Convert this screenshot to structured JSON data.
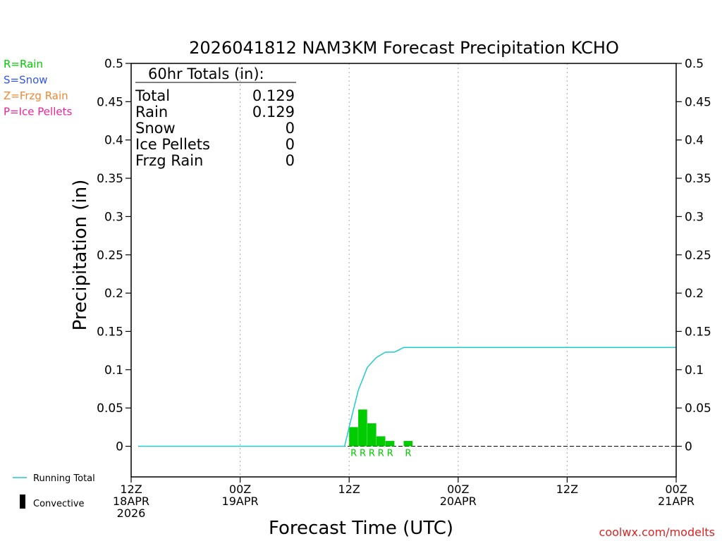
{
  "chart_data": {
    "type": "bar",
    "title": "2026041812 NAM3KM Forecast Precipitation KCHO",
    "xlabel": "Forecast Time (UTC)",
    "ylabel": "Precipitation (in)",
    "ylim": [
      -0.04,
      0.5
    ],
    "yticks": [
      0,
      0.05,
      0.1,
      0.15,
      0.2,
      0.25,
      0.3,
      0.35,
      0.4,
      0.45,
      0.5
    ],
    "ytick_labels": [
      "0",
      "0.05",
      "0.1",
      "0.15",
      "0.2",
      "0.25",
      "0.3",
      "0.35",
      "0.4",
      "0.45",
      "0.5"
    ],
    "xlim_hours": [
      0,
      60
    ],
    "xticks": [
      {
        "hour": 0,
        "lines": [
          "12Z",
          "18APR",
          "2026"
        ]
      },
      {
        "hour": 12,
        "lines": [
          "00Z",
          "19APR"
        ]
      },
      {
        "hour": 24,
        "lines": [
          "12Z"
        ]
      },
      {
        "hour": 36,
        "lines": [
          "00Z",
          "20APR"
        ]
      },
      {
        "hour": 48,
        "lines": [
          "12Z"
        ]
      },
      {
        "hour": 60,
        "lines": [
          "00Z",
          "21APR"
        ]
      }
    ],
    "bars": [
      {
        "hour": 24,
        "value": 0.025,
        "ptype": "R"
      },
      {
        "hour": 25,
        "value": 0.048,
        "ptype": "R"
      },
      {
        "hour": 26,
        "value": 0.03,
        "ptype": "R"
      },
      {
        "hour": 27,
        "value": 0.013,
        "ptype": "R"
      },
      {
        "hour": 28,
        "value": 0.007,
        "ptype": "R"
      },
      {
        "hour": 30,
        "value": 0.007,
        "ptype": "R"
      }
    ],
    "running_total": {
      "hours": [
        0.8,
        23,
        23.5,
        24,
        25,
        26,
        27,
        28,
        29,
        30,
        60
      ],
      "values": [
        0,
        0,
        0,
        0.025,
        0.073,
        0.103,
        0.116,
        0.123,
        0.123,
        0.129,
        0.129
      ]
    },
    "totals_box": {
      "title": "60hr Totals (in):",
      "rows": [
        {
          "label": "Total",
          "value": "0.129"
        },
        {
          "label": "Rain",
          "value": "0.129"
        },
        {
          "label": "Snow",
          "value": "0"
        },
        {
          "label": "Ice Pellets",
          "value": "0"
        },
        {
          "label": "Frzg Rain",
          "value": "0"
        }
      ]
    },
    "ptype_legend": [
      {
        "text": "R=Rain",
        "color": "#00cc00"
      },
      {
        "text": "S=Snow",
        "color": "#3355ee"
      },
      {
        "text": "Z=Frzg Rain",
        "color": "#ee8833"
      },
      {
        "text": "P=Ice Pellets",
        "color": "#ee2299"
      }
    ],
    "bottom_legend": {
      "running_total": "Running Total",
      "convective": "Convective"
    },
    "colors": {
      "rain": "#00cc00",
      "running_total": "#22cccc",
      "axis": "#000000",
      "grid": "#aaaaaa",
      "credit": "#dd2222"
    },
    "credit": "coolwx.com/modelts"
  }
}
